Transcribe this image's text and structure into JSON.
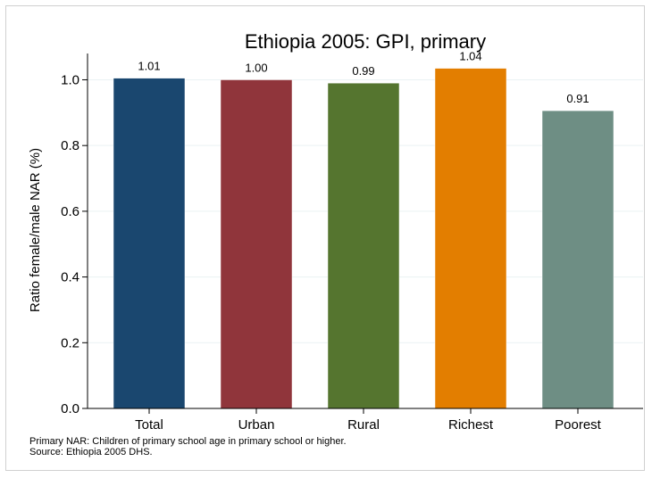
{
  "chart_data": {
    "type": "bar",
    "title": "Ethiopia 2005: GPI, primary",
    "xlabel": "",
    "ylabel": "Ratio female/male NAR (%)",
    "categories": [
      "Total",
      "Urban",
      "Rural",
      "Richest",
      "Poorest"
    ],
    "values": [
      1.005,
      1.0,
      0.99,
      1.035,
      0.906
    ],
    "data_labels": [
      "1.01",
      "1.00",
      "0.99",
      "1.04",
      "0.91"
    ],
    "colors": [
      "#1a476f",
      "#90353b",
      "#55752f",
      "#e37e00",
      "#6e8e84"
    ],
    "ylim": [
      0,
      1.08
    ],
    "yticks": [
      0,
      0.2,
      0.4,
      0.6,
      0.8,
      1.0
    ],
    "ytick_labels": [
      "0.0",
      "0.2",
      "0.4",
      "0.6",
      "0.8",
      "1.0"
    ],
    "grid": true,
    "legend": "none"
  },
  "notes": {
    "definition": "Primary NAR: Children of primary school age in primary school or higher.",
    "source": "Source: Ethiopia 2005 DHS."
  }
}
